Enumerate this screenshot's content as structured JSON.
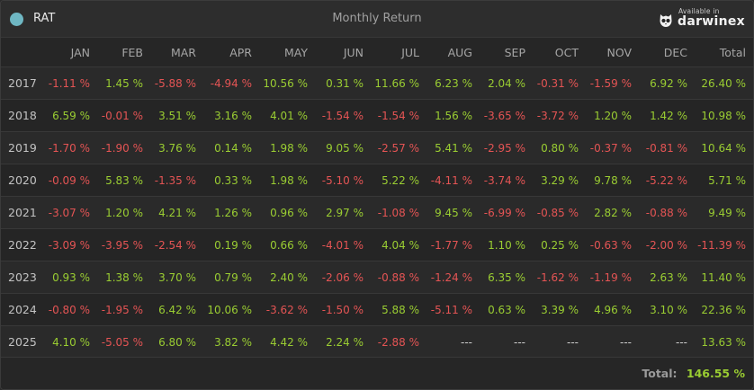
{
  "header": {
    "strategy_name": "RAT",
    "title": "Monthly Return",
    "logo_small": "Available in",
    "logo_word": "darwinex",
    "logo_icon": "owl-icon",
    "dot_color": "#6fb7c3"
  },
  "columns": [
    "JAN",
    "FEB",
    "MAR",
    "APR",
    "MAY",
    "JUN",
    "JUL",
    "AUG",
    "SEP",
    "OCT",
    "NOV",
    "DEC",
    "Total"
  ],
  "rows": [
    {
      "year": "2017",
      "values": [
        "-1.11 %",
        "1.45 %",
        "-5.88 %",
        "-4.94 %",
        "10.56 %",
        "0.31 %",
        "11.66 %",
        "6.23 %",
        "2.04 %",
        "-0.31 %",
        "-1.59 %",
        "6.92 %",
        "26.40 %"
      ]
    },
    {
      "year": "2018",
      "values": [
        "6.59 %",
        "-0.01 %",
        "3.51 %",
        "3.16 %",
        "4.01 %",
        "-1.54 %",
        "-1.54 %",
        "1.56 %",
        "-3.65 %",
        "-3.72 %",
        "1.20 %",
        "1.42 %",
        "10.98 %"
      ]
    },
    {
      "year": "2019",
      "values": [
        "-1.70 %",
        "-1.90 %",
        "3.76 %",
        "0.14 %",
        "1.98 %",
        "9.05 %",
        "-2.57 %",
        "5.41 %",
        "-2.95 %",
        "0.80 %",
        "-0.37 %",
        "-0.81 %",
        "10.64 %"
      ]
    },
    {
      "year": "2020",
      "values": [
        "-0.09 %",
        "5.83 %",
        "-1.35 %",
        "0.33 %",
        "1.98 %",
        "-5.10 %",
        "5.22 %",
        "-4.11 %",
        "-3.74 %",
        "3.29 %",
        "9.78 %",
        "-5.22 %",
        "5.71 %"
      ]
    },
    {
      "year": "2021",
      "values": [
        "-3.07 %",
        "1.20 %",
        "4.21 %",
        "1.26 %",
        "0.96 %",
        "2.97 %",
        "-1.08 %",
        "9.45 %",
        "-6.99 %",
        "-0.85 %",
        "2.82 %",
        "-0.88 %",
        "9.49 %"
      ]
    },
    {
      "year": "2022",
      "values": [
        "-3.09 %",
        "-3.95 %",
        "-2.54 %",
        "0.19 %",
        "0.66 %",
        "-4.01 %",
        "4.04 %",
        "-1.77 %",
        "1.10 %",
        "0.25 %",
        "-0.63 %",
        "-2.00 %",
        "-11.39 %"
      ]
    },
    {
      "year": "2023",
      "values": [
        "0.93 %",
        "1.38 %",
        "3.70 %",
        "0.79 %",
        "2.40 %",
        "-2.06 %",
        "-0.88 %",
        "-1.24 %",
        "6.35 %",
        "-1.62 %",
        "-1.19 %",
        "2.63 %",
        "11.40 %"
      ]
    },
    {
      "year": "2024",
      "values": [
        "-0.80 %",
        "-1.95 %",
        "6.42 %",
        "10.06 %",
        "-3.62 %",
        "-1.50 %",
        "5.88 %",
        "-5.11 %",
        "0.63 %",
        "3.39 %",
        "4.96 %",
        "3.10 %",
        "22.36 %"
      ]
    },
    {
      "year": "2025",
      "values": [
        "4.10 %",
        "-5.05 %",
        "6.80 %",
        "3.82 %",
        "4.42 %",
        "2.24 %",
        "-2.88 %",
        "---",
        "---",
        "---",
        "---",
        "---",
        "13.63 %"
      ]
    }
  ],
  "footer": {
    "total_label": "Total:",
    "total_value": "146.55 %"
  },
  "colors": {
    "positive": "#9acd32",
    "negative": "#e45454",
    "neutral": "#d0d0d0"
  }
}
